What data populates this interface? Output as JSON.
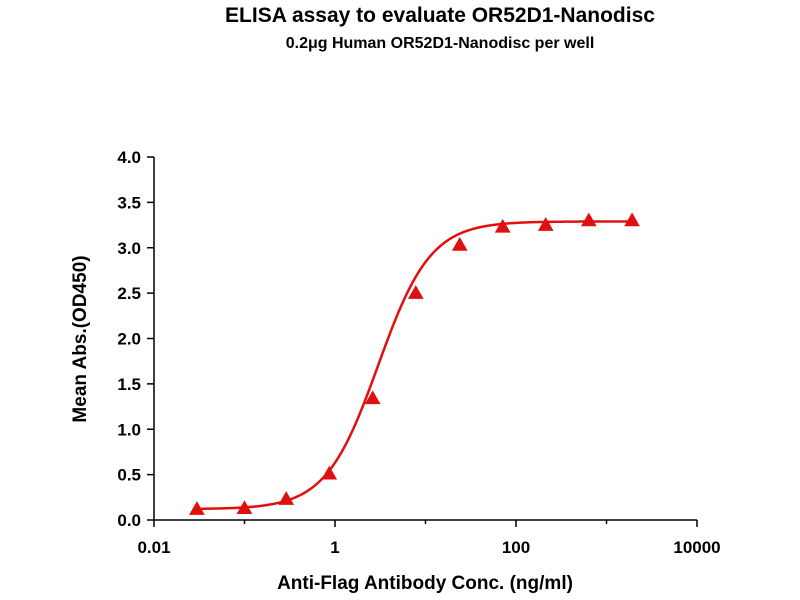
{
  "chart_data": {
    "type": "scatter",
    "title": "ELISA assay to evaluate OR52D1-Nanodisc",
    "subtitle": "0.2μg Human OR52D1-Nanodisc per well",
    "xlabel": "Anti-Flag Antibody Conc. (ng/ml)",
    "ylabel": "Mean Abs.(OD450)",
    "xscale": "log",
    "xlim": [
      0.01,
      10000
    ],
    "ylim": [
      0,
      4.0
    ],
    "x_ticks": [
      0.01,
      1,
      100,
      10000
    ],
    "x_tick_labels": [
      "0.01",
      "1",
      "100",
      "10000"
    ],
    "y_ticks": [
      0,
      0.5,
      1.0,
      1.5,
      2.0,
      2.5,
      3.0,
      3.5,
      4.0
    ],
    "y_tick_labels": [
      "0.0",
      "0.5",
      "1.0",
      "1.5",
      "2.0",
      "2.5",
      "3.0",
      "3.5",
      "4.0"
    ],
    "grid": false,
    "marker": "triangle",
    "color": "#e01010",
    "series": [
      {
        "x": [
          0.0298,
          0.0999,
          0.289,
          0.863,
          2.61,
          7.81,
          23.9,
          71.3,
          213,
          638,
          1916
        ],
        "y": [
          0.12,
          0.13,
          0.23,
          0.51,
          1.34,
          2.5,
          3.03,
          3.23,
          3.25,
          3.3,
          3.3
        ]
      }
    ],
    "fit_curve": {
      "type": "4PL sigmoid",
      "bottom": 0.12,
      "top": 3.29,
      "ec50": 3.0,
      "hill": 1.5
    }
  }
}
